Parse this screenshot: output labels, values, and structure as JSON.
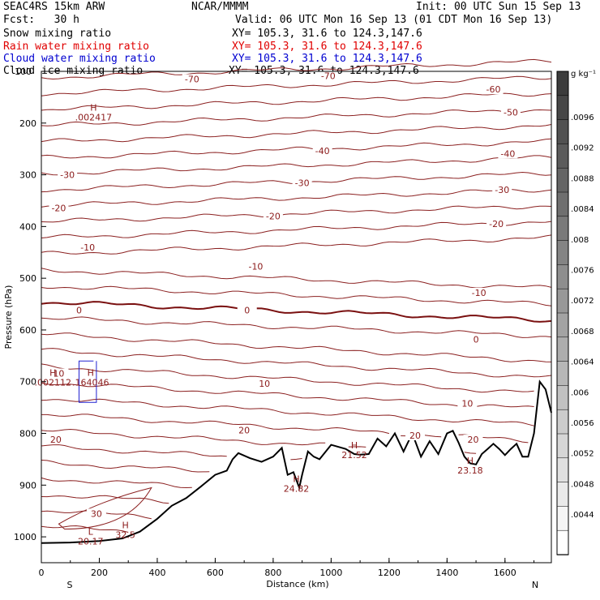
{
  "header": {
    "model": "SEAC4RS 15km ARW",
    "center": "NCAR/MMMM",
    "init": "Init: 00 UTC Sun 15 Sep 13",
    "fcst": "Fcst:   30 h",
    "valid": "Valid: 06 UTC Mon 16 Sep 13 (01 CDT Mon 16 Sep 13)"
  },
  "fields": [
    {
      "name": "Snow mixing ratio",
      "xy": "XY= 105.3, 31.6 to 124.3,147.6",
      "color": "#000000"
    },
    {
      "name": "Rain water mixing ratio",
      "xy": "XY= 105.3, 31.6 to 124.3,147.6",
      "color": "#e00000"
    },
    {
      "name": "Cloud water mixing ratio",
      "xy": "XY= 105.3, 31.6 to 124.3,147.6",
      "color": "#0000d0"
    },
    {
      "name": "Cloud ice mixing ratio",
      "xy": "XY= 105.3, 31.6 to 124.3,147.6",
      "color": "#000000"
    }
  ],
  "chart_data": {
    "type": "line",
    "xlabel": "Distance (km)",
    "ylabel": "Pressure (hPa)",
    "xlim": [
      0,
      1760
    ],
    "ylim": [
      1050,
      100
    ],
    "x_ticks": [
      0,
      200,
      400,
      600,
      800,
      1000,
      1200,
      1400,
      1600
    ],
    "y_ticks": [
      200,
      300,
      400,
      500,
      600,
      700,
      800,
      900,
      1000
    ],
    "y_tick_labels": [
      "200",
      "300",
      "400",
      "500",
      "600",
      "700",
      "800",
      "900",
      "1000"
    ],
    "top_label": "100",
    "direction_labels": {
      "left": "S",
      "right": "N"
    },
    "isotherm_labels": [
      {
        "text": "-70",
        "x": 520,
        "p": 118
      },
      {
        "text": "-70",
        "x": 990,
        "p": 112
      },
      {
        "text": "-60",
        "x": 1560,
        "p": 138
      },
      {
        "text": "-50",
        "x": 1620,
        "p": 182
      },
      {
        "text": "-40",
        "x": 970,
        "p": 257
      },
      {
        "text": "-40",
        "x": 1610,
        "p": 262
      },
      {
        "text": "-30",
        "x": 90,
        "p": 303
      },
      {
        "text": "-30",
        "x": 900,
        "p": 319
      },
      {
        "text": "-30",
        "x": 1590,
        "p": 332
      },
      {
        "text": "-20",
        "x": 60,
        "p": 367
      },
      {
        "text": "-20",
        "x": 800,
        "p": 383
      },
      {
        "text": "-20",
        "x": 1570,
        "p": 398
      },
      {
        "text": "-10",
        "x": 160,
        "p": 443
      },
      {
        "text": "-10",
        "x": 740,
        "p": 480
      },
      {
        "text": "-10",
        "x": 1510,
        "p": 531
      },
      {
        "text": "0",
        "x": 130,
        "p": 565
      },
      {
        "text": "0",
        "x": 710,
        "p": 565
      },
      {
        "text": "0",
        "x": 1500,
        "p": 621
      },
      {
        "text": "10",
        "x": 60,
        "p": 687
      },
      {
        "text": "10",
        "x": 770,
        "p": 707
      },
      {
        "text": "10",
        "x": 1470,
        "p": 745
      },
      {
        "text": "20",
        "x": 50,
        "p": 815
      },
      {
        "text": "20",
        "x": 700,
        "p": 797
      },
      {
        "text": "20",
        "x": 1290,
        "p": 807
      },
      {
        "text": "20",
        "x": 1490,
        "p": 815
      },
      {
        "text": "30",
        "x": 190,
        "p": 958
      }
    ],
    "extrema": [
      {
        "mark": "H",
        "value": ".002417",
        "x": 180,
        "p": 182
      },
      {
        "mark": "H",
        "value": "21.52",
        "x": 1080,
        "p": 835
      },
      {
        "mark": "H",
        "value": "24.82",
        "x": 880,
        "p": 900
      },
      {
        "mark": "H",
        "value": "23.18",
        "x": 1480,
        "p": 865
      },
      {
        "mark": "L",
        "value": "20.17",
        "x": 170,
        "p": 1002
      },
      {
        "mark": "H",
        "value": "32.5",
        "x": 290,
        "p": 990
      },
      {
        "mark": "H",
        "value": ".002112",
        "x": 40,
        "p": 695
      },
      {
        "mark": "H",
        "value": ".164046",
        "x": 170,
        "p": 695
      }
    ],
    "terrain": {
      "x": [
        0,
        100,
        200,
        280,
        340,
        400,
        450,
        500,
        550,
        600,
        640,
        660,
        680,
        720,
        760,
        800,
        830,
        850,
        870,
        890,
        900,
        920,
        940,
        960,
        1000,
        1050,
        1080,
        1100,
        1130,
        1160,
        1190,
        1220,
        1250,
        1280,
        1310,
        1340,
        1370,
        1400,
        1420,
        1440,
        1460,
        1480,
        1500,
        1520,
        1540,
        1560,
        1580,
        1600,
        1620,
        1640,
        1660,
        1680,
        1700,
        1720,
        1740,
        1760
      ],
      "p": [
        1012,
        1011,
        1008,
        1003,
        990,
        965,
        940,
        925,
        903,
        880,
        872,
        850,
        838,
        848,
        855,
        845,
        828,
        880,
        875,
        905,
        880,
        835,
        845,
        850,
        822,
        830,
        840,
        841,
        840,
        810,
        825,
        800,
        835,
        800,
        845,
        815,
        840,
        800,
        795,
        818,
        845,
        858,
        860,
        840,
        830,
        820,
        830,
        842,
        830,
        820,
        845,
        845,
        800,
        700,
        715,
        760
      ]
    }
  },
  "colorbar": {
    "unit": "g kg⁻¹",
    "labels": [
      ".0096",
      ".0092",
      ".0088",
      ".0084",
      ".008",
      ".0076",
      ".0072",
      ".0068",
      ".0064",
      ".006",
      ".0056",
      ".0052",
      ".0048",
      ".0044"
    ]
  }
}
